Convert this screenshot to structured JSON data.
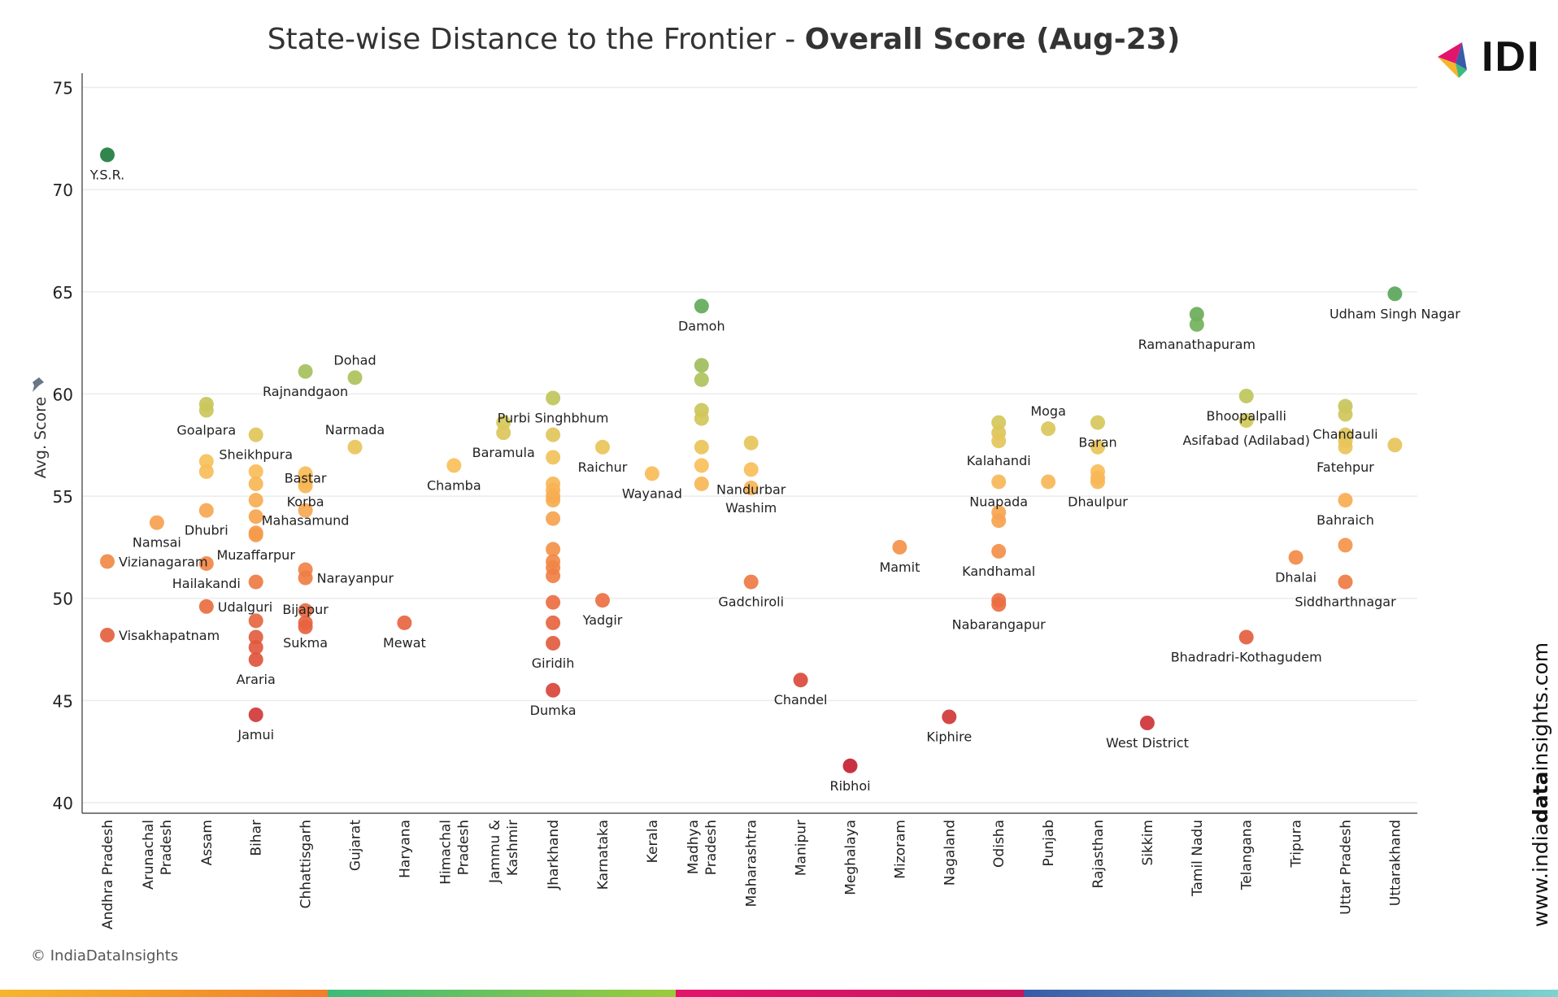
{
  "chart_data": {
    "type": "scatter",
    "title_regular": "State-wise Distance to the Frontier - ",
    "title_bold": "Overall Score (Aug-23)",
    "xlabel": "",
    "ylabel": "Avg. Score",
    "ylim": [
      40,
      75
    ],
    "yticks": [
      40,
      45,
      50,
      55,
      60,
      65,
      70,
      75
    ],
    "grid": "horizontal",
    "color_scale": {
      "low": "#c41f32",
      "mid": "#f8c05a",
      "high": "#1e7a3e"
    },
    "categories": [
      "Andhra Pradesh",
      "Arunachal Pradesh",
      "Assam",
      "Bihar",
      "Chhattisgarh",
      "Gujarat",
      "Haryana",
      "Himachal Pradesh",
      "Jammu & Kashmir",
      "Jharkhand",
      "Karnataka",
      "Kerala",
      "Madhya Pradesh",
      "Maharashtra",
      "Manipur",
      "Meghalaya",
      "Mizoram",
      "Nagaland",
      "Odisha",
      "Punjab",
      "Rajasthan",
      "Sikkim",
      "Tamil Nadu",
      "Telangana",
      "Tripura",
      "Uttar Pradesh",
      "Uttarakhand"
    ],
    "category_lines": [
      [
        "Andhra Pradesh"
      ],
      [
        "Arunachal",
        "Pradesh"
      ],
      [
        "Assam"
      ],
      [
        "Bihar"
      ],
      [
        "Chhattisgarh"
      ],
      [
        "Gujarat"
      ],
      [
        "Haryana"
      ],
      [
        "Himachal",
        "Pradesh"
      ],
      [
        "Jammu &",
        "Kashmir"
      ],
      [
        "Jharkhand"
      ],
      [
        "Karnataka"
      ],
      [
        "Kerala"
      ],
      [
        "Madhya",
        "Pradesh"
      ],
      [
        "Maharashtra"
      ],
      [
        "Manipur"
      ],
      [
        "Meghalaya"
      ],
      [
        "Mizoram"
      ],
      [
        "Nagaland"
      ],
      [
        "Odisha"
      ],
      [
        "Punjab"
      ],
      [
        "Rajasthan"
      ],
      [
        "Sikkim"
      ],
      [
        "Tamil Nadu"
      ],
      [
        "Telangana"
      ],
      [
        "Tripura"
      ],
      [
        "Uttar Pradesh"
      ],
      [
        "Uttarakhand"
      ]
    ],
    "points": [
      {
        "state": "Andhra Pradesh",
        "value": 71.7,
        "label": "Y.S.R."
      },
      {
        "state": "Andhra Pradesh",
        "value": 51.8,
        "label": "Vizianagaram"
      },
      {
        "state": "Andhra Pradesh",
        "value": 48.2,
        "label": "Visakhapatnam"
      },
      {
        "state": "Arunachal Pradesh",
        "value": 53.7,
        "label": "Namsai"
      },
      {
        "state": "Assam",
        "value": 59.5,
        "label": ""
      },
      {
        "state": "Assam",
        "value": 59.2,
        "label": "Goalpara"
      },
      {
        "state": "Assam",
        "value": 56.7,
        "label": ""
      },
      {
        "state": "Assam",
        "value": 56.2,
        "label": ""
      },
      {
        "state": "Assam",
        "value": 54.3,
        "label": "Dhubri"
      },
      {
        "state": "Assam",
        "value": 51.7,
        "label": "Hailakandi"
      },
      {
        "state": "Assam",
        "value": 49.6,
        "label": "Udalguri"
      },
      {
        "state": "Bihar",
        "value": 58.0,
        "label": "Sheikhpura"
      },
      {
        "state": "Bihar",
        "value": 56.2,
        "label": ""
      },
      {
        "state": "Bihar",
        "value": 55.6,
        "label": ""
      },
      {
        "state": "Bihar",
        "value": 54.8,
        "label": ""
      },
      {
        "state": "Bihar",
        "value": 54.0,
        "label": ""
      },
      {
        "state": "Bihar",
        "value": 53.2,
        "label": ""
      },
      {
        "state": "Bihar",
        "value": 53.1,
        "label": "Muzaffarpur"
      },
      {
        "state": "Bihar",
        "value": 50.8,
        "label": ""
      },
      {
        "state": "Bihar",
        "value": 48.9,
        "label": ""
      },
      {
        "state": "Bihar",
        "value": 48.1,
        "label": ""
      },
      {
        "state": "Bihar",
        "value": 47.6,
        "label": ""
      },
      {
        "state": "Bihar",
        "value": 47.0,
        "label": "Araria"
      },
      {
        "state": "Bihar",
        "value": 44.3,
        "label": "Jamui"
      },
      {
        "state": "Chhattisgarh",
        "value": 61.1,
        "label": "Rajnandgaon"
      },
      {
        "state": "Chhattisgarh",
        "value": 56.1,
        "label": ""
      },
      {
        "state": "Chhattisgarh",
        "value": 55.7,
        "label": "Korba"
      },
      {
        "state": "Chhattisgarh",
        "value": 55.5,
        "label": "Mahasamund"
      },
      {
        "state": "Chhattisgarh",
        "value": 54.3,
        "label": "Bastar"
      },
      {
        "state": "Chhattisgarh",
        "value": 51.4,
        "label": ""
      },
      {
        "state": "Chhattisgarh",
        "value": 51.0,
        "label": "Narayanpur"
      },
      {
        "state": "Chhattisgarh",
        "value": 49.4,
        "label": ""
      },
      {
        "state": "Chhattisgarh",
        "value": 48.8,
        "label": "Sukma"
      },
      {
        "state": "Chhattisgarh",
        "value": 48.6,
        "label": "Bijapur"
      },
      {
        "state": "Gujarat",
        "value": 60.8,
        "label": "Dohad"
      },
      {
        "state": "Gujarat",
        "value": 57.4,
        "label": "Narmada"
      },
      {
        "state": "Haryana",
        "value": 48.8,
        "label": "Mewat"
      },
      {
        "state": "Himachal Pradesh",
        "value": 56.5,
        "label": "Chamba"
      },
      {
        "state": "Jammu & Kashmir",
        "value": 58.6,
        "label": ""
      },
      {
        "state": "Jammu & Kashmir",
        "value": 58.1,
        "label": "Baramula"
      },
      {
        "state": "Jharkhand",
        "value": 59.8,
        "label": "Purbi Singhbhum"
      },
      {
        "state": "Jharkhand",
        "value": 58.0,
        "label": ""
      },
      {
        "state": "Jharkhand",
        "value": 56.9,
        "label": ""
      },
      {
        "state": "Jharkhand",
        "value": 55.6,
        "label": ""
      },
      {
        "state": "Jharkhand",
        "value": 55.3,
        "label": ""
      },
      {
        "state": "Jharkhand",
        "value": 55.0,
        "label": ""
      },
      {
        "state": "Jharkhand",
        "value": 54.8,
        "label": ""
      },
      {
        "state": "Jharkhand",
        "value": 53.9,
        "label": ""
      },
      {
        "state": "Jharkhand",
        "value": 52.4,
        "label": ""
      },
      {
        "state": "Jharkhand",
        "value": 51.8,
        "label": ""
      },
      {
        "state": "Jharkhand",
        "value": 51.5,
        "label": ""
      },
      {
        "state": "Jharkhand",
        "value": 51.1,
        "label": ""
      },
      {
        "state": "Jharkhand",
        "value": 49.8,
        "label": ""
      },
      {
        "state": "Jharkhand",
        "value": 48.8,
        "label": ""
      },
      {
        "state": "Jharkhand",
        "value": 47.8,
        "label": "Giridih"
      },
      {
        "state": "Jharkhand",
        "value": 45.5,
        "label": "Dumka"
      },
      {
        "state": "Karnataka",
        "value": 57.4,
        "label": "Raichur"
      },
      {
        "state": "Karnataka",
        "value": 49.9,
        "label": "Yadgir"
      },
      {
        "state": "Kerala",
        "value": 56.1,
        "label": "Wayanad"
      },
      {
        "state": "Madhya Pradesh",
        "value": 64.3,
        "label": "Damoh"
      },
      {
        "state": "Madhya Pradesh",
        "value": 61.4,
        "label": ""
      },
      {
        "state": "Madhya Pradesh",
        "value": 60.7,
        "label": ""
      },
      {
        "state": "Madhya Pradesh",
        "value": 59.2,
        "label": ""
      },
      {
        "state": "Madhya Pradesh",
        "value": 58.8,
        "label": ""
      },
      {
        "state": "Madhya Pradesh",
        "value": 57.4,
        "label": ""
      },
      {
        "state": "Madhya Pradesh",
        "value": 56.5,
        "label": ""
      },
      {
        "state": "Madhya Pradesh",
        "value": 55.6,
        "label": ""
      },
      {
        "state": "Maharashtra",
        "value": 57.6,
        "label": ""
      },
      {
        "state": "Maharashtra",
        "value": 56.3,
        "label": "Nandurbar"
      },
      {
        "state": "Maharashtra",
        "value": 55.4,
        "label": "Washim"
      },
      {
        "state": "Maharashtra",
        "value": 50.8,
        "label": "Gadchiroli"
      },
      {
        "state": "Manipur",
        "value": 46.0,
        "label": "Chandel"
      },
      {
        "state": "Meghalaya",
        "value": 41.8,
        "label": "Ribhoi"
      },
      {
        "state": "Mizoram",
        "value": 52.5,
        "label": "Mamit"
      },
      {
        "state": "Nagaland",
        "value": 44.2,
        "label": "Kiphire"
      },
      {
        "state": "Odisha",
        "value": 58.6,
        "label": ""
      },
      {
        "state": "Odisha",
        "value": 58.1,
        "label": ""
      },
      {
        "state": "Odisha",
        "value": 57.7,
        "label": "Kalahandi"
      },
      {
        "state": "Odisha",
        "value": 55.7,
        "label": "Nuapada"
      },
      {
        "state": "Odisha",
        "value": 54.2,
        "label": ""
      },
      {
        "state": "Odisha",
        "value": 53.8,
        "label": ""
      },
      {
        "state": "Odisha",
        "value": 52.3,
        "label": "Kandhamal"
      },
      {
        "state": "Odisha",
        "value": 49.9,
        "label": ""
      },
      {
        "state": "Odisha",
        "value": 49.7,
        "label": "Nabarangapur"
      },
      {
        "state": "Punjab",
        "value": 58.3,
        "label": "Moga"
      },
      {
        "state": "Punjab",
        "value": 55.7,
        "label": ""
      },
      {
        "state": "Rajasthan",
        "value": 58.6,
        "label": "Baran"
      },
      {
        "state": "Rajasthan",
        "value": 57.4,
        "label": ""
      },
      {
        "state": "Rajasthan",
        "value": 56.2,
        "label": ""
      },
      {
        "state": "Rajasthan",
        "value": 55.9,
        "label": ""
      },
      {
        "state": "Rajasthan",
        "value": 55.7,
        "label": "Dhaulpur"
      },
      {
        "state": "Sikkim",
        "value": 43.9,
        "label": "West District"
      },
      {
        "state": "Tamil Nadu",
        "value": 63.9,
        "label": ""
      },
      {
        "state": "Tamil Nadu",
        "value": 63.4,
        "label": "Ramanathapuram"
      },
      {
        "state": "Telangana",
        "value": 59.9,
        "label": "Bhoopalpalli"
      },
      {
        "state": "Telangana",
        "value": 58.7,
        "label": "Asifabad (Adilabad)"
      },
      {
        "state": "Telangana",
        "value": 48.1,
        "label": "Bhadradri-Kothagudem"
      },
      {
        "state": "Tripura",
        "value": 52.0,
        "label": "Dhalai"
      },
      {
        "state": "Uttar Pradesh",
        "value": 59.4,
        "label": ""
      },
      {
        "state": "Uttar Pradesh",
        "value": 59.0,
        "label": "Chandauli"
      },
      {
        "state": "Uttar Pradesh",
        "value": 58.0,
        "label": ""
      },
      {
        "state": "Uttar Pradesh",
        "value": 57.7,
        "label": ""
      },
      {
        "state": "Uttar Pradesh",
        "value": 57.4,
        "label": "Fatehpur"
      },
      {
        "state": "Uttar Pradesh",
        "value": 54.8,
        "label": "Bahraich"
      },
      {
        "state": "Uttar Pradesh",
        "value": 52.6,
        "label": ""
      },
      {
        "state": "Uttar Pradesh",
        "value": 50.8,
        "label": "Siddharthnagar"
      },
      {
        "state": "Uttarakhand",
        "value": 64.9,
        "label": "Udham Singh Nagar"
      },
      {
        "state": "Uttarakhand",
        "value": 57.5,
        "label": ""
      }
    ]
  },
  "footer": {
    "copyright": "© IndiaDataInsights",
    "website_prefix": "www.india",
    "website_bold": "data",
    "website_suffix": "insights.com",
    "logo_text": "IDI",
    "bottom_bar_colors": [
      "#f6b52e",
      "#f07f2a",
      "#3dbb7a",
      "#9ccb3b",
      "#e2156c",
      "#c8155f",
      "#3a5ba8",
      "#7dd3cf"
    ]
  }
}
